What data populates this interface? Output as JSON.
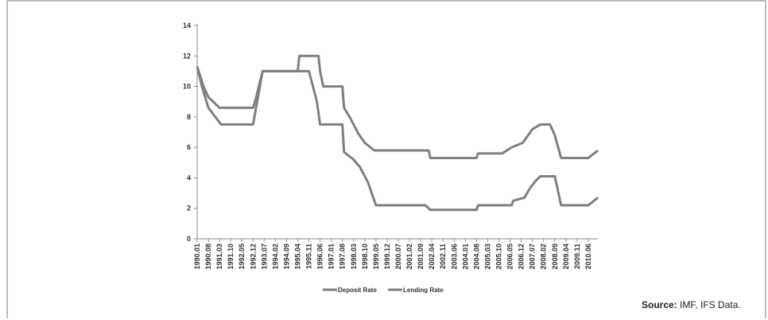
{
  "source": {
    "label": "Source:",
    "text": " IMF, IFS Data."
  },
  "chart_data": {
    "type": "line",
    "title": "",
    "xlabel": "",
    "ylabel": "",
    "ylim": [
      0,
      14
    ],
    "yticks": [
      0,
      2,
      4,
      6,
      8,
      10,
      12,
      14
    ],
    "x_start": "1990.01",
    "x_end": "2010.12",
    "x_tick_labels": [
      "1990.01",
      "1990.08",
      "1991.03",
      "1991.10",
      "1992.05",
      "1992.12",
      "1993.07",
      "1994.02",
      "1994.09",
      "1995.04",
      "1995.11",
      "1996.06",
      "1997.01",
      "1997.08",
      "1998.03",
      "1998.10",
      "1999.05",
      "1999.12",
      "2000.07",
      "2001.02",
      "2001.09",
      "2002.04",
      "2002.11",
      "2003.06",
      "2004.01",
      "2004.08",
      "2005.03",
      "2005.10",
      "2006.05",
      "2006.12",
      "2007.07",
      "2008.02",
      "2008.09",
      "2009.04",
      "2009.11",
      "2010.06"
    ],
    "legend_position": "bottom",
    "grid": false,
    "colors": {
      "series": "#7f7f7f",
      "axis": "#888888"
    },
    "series": [
      {
        "name": "Deposit Rate",
        "points": [
          [
            "1990.01",
            11.3
          ],
          [
            "1990.04",
            10.0
          ],
          [
            "1990.08",
            8.6
          ],
          [
            "1991.04",
            7.5
          ],
          [
            "1992.12",
            7.5
          ],
          [
            "1993.06",
            11.0
          ],
          [
            "1995.11",
            11.0
          ],
          [
            "1996.04",
            9.0
          ],
          [
            "1996.06",
            7.5
          ],
          [
            "1997.08",
            7.5
          ],
          [
            "1997.09",
            5.7
          ],
          [
            "1998.03",
            5.2
          ],
          [
            "1998.07",
            4.7
          ],
          [
            "1998.12",
            3.7
          ],
          [
            "1999.05",
            2.2
          ],
          [
            "2001.12",
            2.2
          ],
          [
            "2002.03",
            1.9
          ],
          [
            "2004.08",
            1.9
          ],
          [
            "2004.09",
            2.2
          ],
          [
            "2006.06",
            2.2
          ],
          [
            "2006.07",
            2.5
          ],
          [
            "2007.02",
            2.7
          ],
          [
            "2007.06",
            3.4
          ],
          [
            "2007.09",
            3.8
          ],
          [
            "2007.12",
            4.1
          ],
          [
            "2008.09",
            4.1
          ],
          [
            "2009.01",
            2.2
          ],
          [
            "2010.06",
            2.2
          ],
          [
            "2010.12",
            2.7
          ]
        ]
      },
      {
        "name": "Lending Rate",
        "points": [
          [
            "1990.01",
            11.3
          ],
          [
            "1990.05",
            10.0
          ],
          [
            "1990.08",
            9.3
          ],
          [
            "1991.03",
            8.6
          ],
          [
            "1992.12",
            8.6
          ],
          [
            "1993.02",
            9.3
          ],
          [
            "1993.06",
            11.0
          ],
          [
            "1995.04",
            11.0
          ],
          [
            "1995.05",
            12.0
          ],
          [
            "1996.05",
            12.0
          ],
          [
            "1996.06",
            11.0
          ],
          [
            "1996.08",
            10.0
          ],
          [
            "1997.08",
            10.0
          ],
          [
            "1997.09",
            8.6
          ],
          [
            "1998.01",
            7.9
          ],
          [
            "1998.06",
            6.9
          ],
          [
            "1998.10",
            6.3
          ],
          [
            "1999.04",
            5.8
          ],
          [
            "2002.02",
            5.8
          ],
          [
            "2002.03",
            5.3
          ],
          [
            "2004.08",
            5.3
          ],
          [
            "2004.09",
            5.6
          ],
          [
            "2005.12",
            5.6
          ],
          [
            "2006.06",
            6.0
          ],
          [
            "2007.01",
            6.3
          ],
          [
            "2007.07",
            7.2
          ],
          [
            "2007.12",
            7.5
          ],
          [
            "2008.06",
            7.5
          ],
          [
            "2008.09",
            6.8
          ],
          [
            "2009.01",
            5.3
          ],
          [
            "2010.06",
            5.3
          ],
          [
            "2010.12",
            5.8
          ]
        ]
      }
    ]
  }
}
